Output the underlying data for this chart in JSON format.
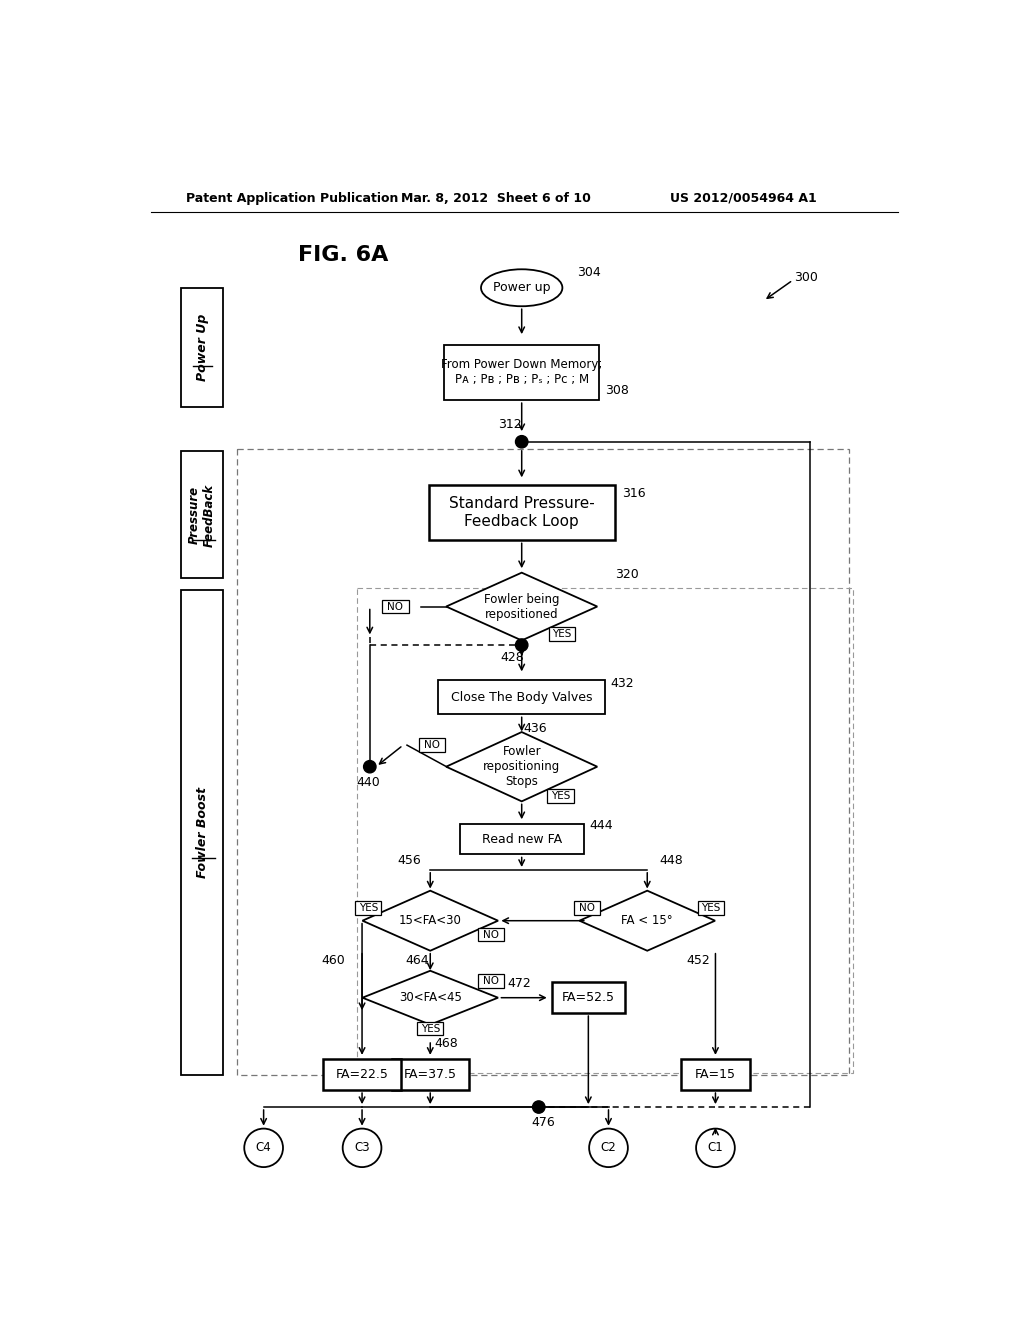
{
  "header_left": "Patent Application Publication",
  "header_mid": "Mar. 8, 2012  Sheet 6 of 10",
  "header_right": "US 2012/0054964 A1",
  "bg_color": "#ffffff"
}
